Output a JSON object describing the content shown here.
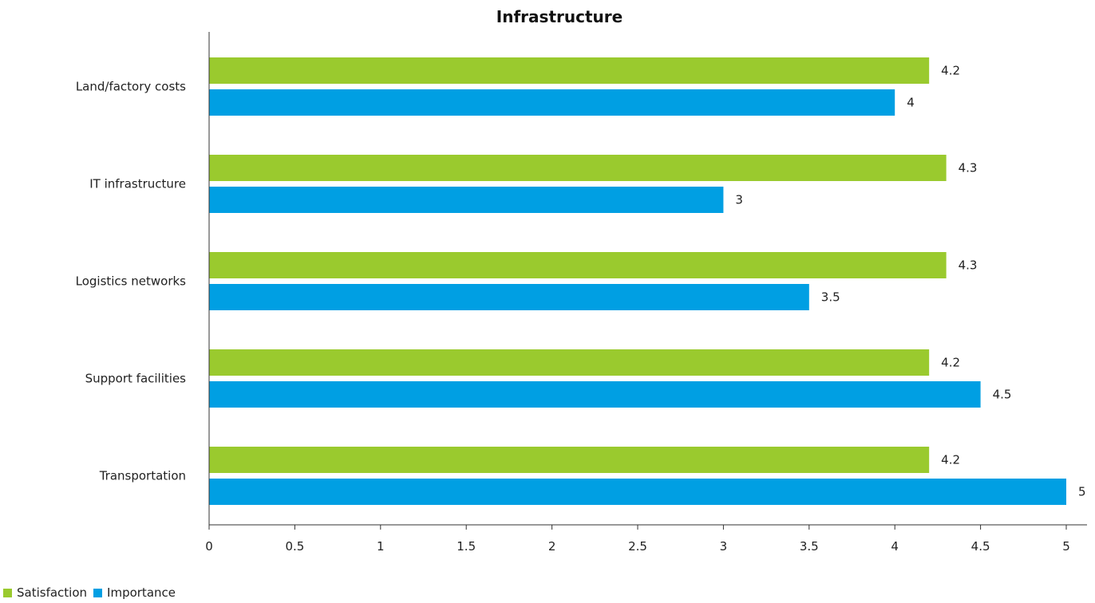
{
  "chart_data": {
    "type": "bar",
    "orientation": "horizontal",
    "title": "Infrastructure",
    "categories": [
      "Land/factory costs",
      "IT infrastructure",
      "Logistics networks",
      "Support facilities",
      "Transportation"
    ],
    "series": [
      {
        "name": "Satisfaction",
        "color": "#9ACA2E",
        "values": [
          4.2,
          4.3,
          4.3,
          4.2,
          4.2
        ]
      },
      {
        "name": "Importance",
        "color": "#009FE3",
        "values": [
          4,
          3,
          3.5,
          4.5,
          5
        ]
      }
    ],
    "xlim": [
      0,
      5
    ],
    "xticks": [
      "0",
      "0.5",
      "1",
      "1.5",
      "2",
      "2.5",
      "3",
      "3.5",
      "4",
      "4.5",
      "5"
    ],
    "grid": false,
    "legend_position": "bottom-left"
  }
}
